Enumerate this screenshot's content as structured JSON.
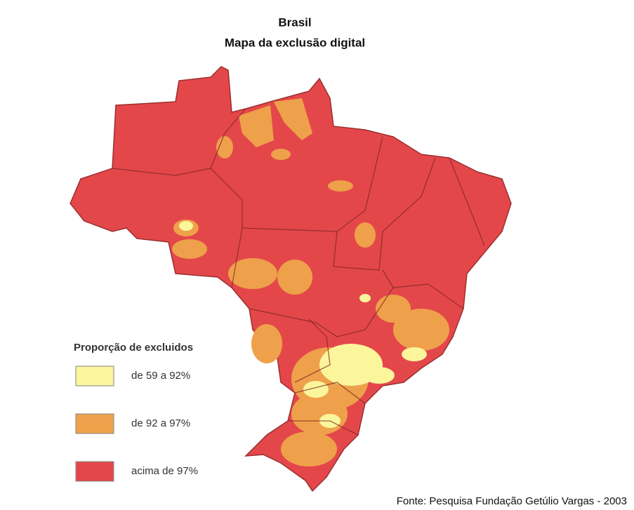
{
  "header": {
    "title": "Brasil",
    "subtitle": "Mapa da exclusão digital"
  },
  "legend": {
    "title": "Proporção de excluidos",
    "items": [
      {
        "label": "de 59 a 92%",
        "color": "#fbf59c"
      },
      {
        "label": "de 92 a 97%",
        "color": "#eea14a"
      },
      {
        "label": "acima de 97%",
        "color": "#e4474a"
      }
    ]
  },
  "source": "Fonte: Pesquisa Fundação Getúlio Vargas - 2003"
}
